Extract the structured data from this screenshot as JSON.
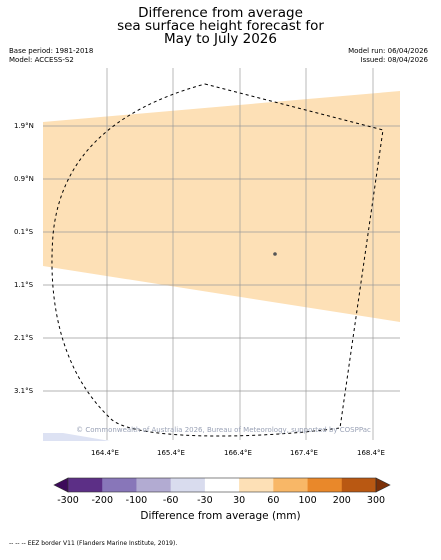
{
  "title": {
    "line1": "Difference from average",
    "line2": "sea surface height forecast for",
    "line3": "May to July 2026"
  },
  "meta": {
    "base_period": "Base period: 1981-2018",
    "model": "Model: ACCESS-S2",
    "model_run": "Model run: 06/04/2026",
    "issued": "Issued: 08/04/2026"
  },
  "map": {
    "lat_labels": [
      "1.9°N",
      "0.9°N",
      "0.1°S",
      "1.1°S",
      "2.1°S",
      "3.1°S"
    ],
    "lon_labels": [
      "164.4°E",
      "165.4°E",
      "166.4°E",
      "167.4°E",
      "168.4°E"
    ],
    "anomaly_fill_color": "#fde0b6",
    "land_color": "#dde2f3",
    "eez_line_color": "#000000",
    "watermark": "© Commonwealth of Australia 2026, Bureau of Meteorology, supported by COSPPac"
  },
  "colorbar": {
    "ticks": [
      "-300",
      "-200",
      "-100",
      "-60",
      "-30",
      "30",
      "60",
      "100",
      "200",
      "300"
    ],
    "colors": [
      "#3d0a5a",
      "#5c2f86",
      "#8876b9",
      "#b2abd2",
      "#d9dcee",
      "#ffffff",
      "#fde0b6",
      "#f8b767",
      "#e9882a",
      "#b95812",
      "#7b3008"
    ],
    "title": "Difference from average (mm)"
  },
  "footer": {
    "legend_text": "-- -- -- EEZ border V11 (Flanders Marine Institute, 2019)."
  }
}
